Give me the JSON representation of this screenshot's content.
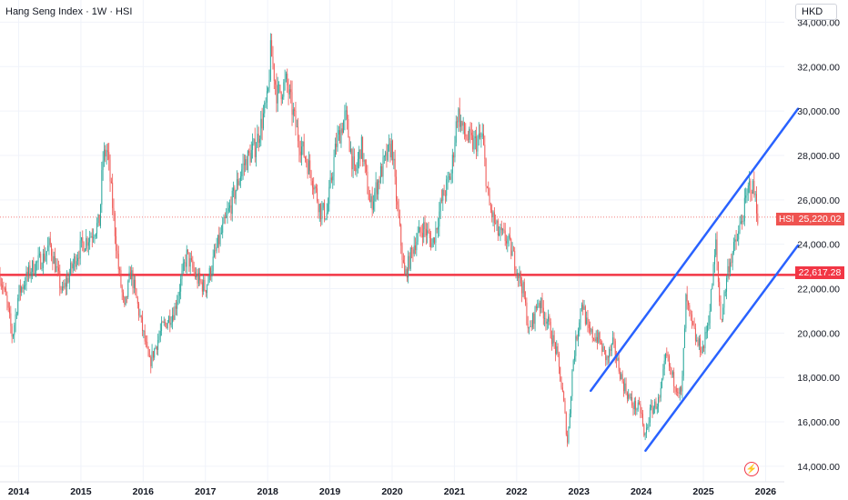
{
  "header": {
    "title": "Hang Seng Index · 1W · HSI"
  },
  "currency": "HKD",
  "price_tag": {
    "symbol": "HSI",
    "value": "25,220.02"
  },
  "level_tag": {
    "value": "22,617.28"
  },
  "icons": {
    "alert": "lightning-icon"
  },
  "colors": {
    "up": "#26a69a",
    "down": "#ef5350",
    "level": "#f23645",
    "channel": "#2962ff",
    "grid": "#f0f3fa",
    "text": "#131722"
  },
  "chart_data": {
    "type": "candlestick",
    "title": "Hang Seng Index · 1W · HSI",
    "currency": "HKD",
    "x_range": [
      2013.7,
      2026.3
    ],
    "y_range": [
      13300,
      35000
    ],
    "y_ticks": [
      14000,
      16000,
      18000,
      20000,
      22000,
      24000,
      26000,
      28000,
      30000,
      32000,
      34000
    ],
    "y_tick_labels": [
      "14,000.00",
      "16,000.00",
      "18,000.00",
      "20,000.00",
      "22,000.00",
      "24,000.00",
      "26,000.00",
      "28,000.00",
      "30,000.00",
      "32,000.00",
      "34,000.00"
    ],
    "x_ticks": [
      2014,
      2015,
      2016,
      2017,
      2018,
      2019,
      2020,
      2021,
      2022,
      2023,
      2024,
      2025,
      2026
    ],
    "x_tick_labels": [
      "2014",
      "2015",
      "2016",
      "2017",
      "2018",
      "2019",
      "2020",
      "2021",
      "2022",
      "2023",
      "2024",
      "2025",
      "2026"
    ],
    "last_price": 25220.02,
    "horizontal_level": 22617.28,
    "price_path": [
      [
        2013.7,
        22600
      ],
      [
        2013.8,
        21500
      ],
      [
        2013.9,
        19800
      ],
      [
        2014.0,
        21800
      ],
      [
        2014.2,
        22900
      ],
      [
        2014.4,
        23400
      ],
      [
        2014.5,
        24000
      ],
      [
        2014.7,
        21800
      ],
      [
        2014.9,
        23300
      ],
      [
        2015.0,
        23900
      ],
      [
        2015.15,
        24400
      ],
      [
        2015.3,
        25000
      ],
      [
        2015.35,
        27800
      ],
      [
        2015.42,
        28300
      ],
      [
        2015.5,
        26000
      ],
      [
        2015.6,
        23000
      ],
      [
        2015.7,
        21000
      ],
      [
        2015.8,
        22800
      ],
      [
        2016.0,
        20000
      ],
      [
        2016.1,
        18600
      ],
      [
        2016.3,
        20200
      ],
      [
        2016.5,
        21000
      ],
      [
        2016.7,
        23500
      ],
      [
        2016.85,
        22500
      ],
      [
        2017.0,
        22000
      ],
      [
        2017.2,
        24000
      ],
      [
        2017.4,
        25700
      ],
      [
        2017.6,
        27500
      ],
      [
        2017.8,
        28400
      ],
      [
        2018.0,
        30500
      ],
      [
        2018.05,
        32800
      ],
      [
        2018.15,
        30700
      ],
      [
        2018.3,
        31300
      ],
      [
        2018.5,
        28700
      ],
      [
        2018.7,
        27200
      ],
      [
        2018.85,
        25500
      ],
      [
        2018.95,
        25400
      ],
      [
        2019.1,
        28500
      ],
      [
        2019.25,
        29800
      ],
      [
        2019.4,
        27000
      ],
      [
        2019.5,
        28500
      ],
      [
        2019.65,
        25700
      ],
      [
        2019.85,
        27500
      ],
      [
        2020.0,
        28500
      ],
      [
        2020.05,
        26500
      ],
      [
        2020.2,
        22500
      ],
      [
        2020.35,
        24000
      ],
      [
        2020.5,
        24800
      ],
      [
        2020.65,
        24000
      ],
      [
        2020.8,
        26000
      ],
      [
        2020.95,
        27200
      ],
      [
        2021.05,
        30000
      ],
      [
        2021.15,
        29000
      ],
      [
        2021.3,
        28500
      ],
      [
        2021.45,
        28800
      ],
      [
        2021.55,
        25800
      ],
      [
        2021.7,
        24500
      ],
      [
        2021.85,
        24200
      ],
      [
        2021.95,
        23400
      ],
      [
        2022.1,
        22000
      ],
      [
        2022.2,
        20000
      ],
      [
        2022.35,
        21500
      ],
      [
        2022.5,
        20500
      ],
      [
        2022.65,
        19000
      ],
      [
        2022.75,
        17000
      ],
      [
        2022.82,
        15000
      ],
      [
        2022.9,
        18600
      ],
      [
        2023.05,
        21500
      ],
      [
        2023.15,
        20000
      ],
      [
        2023.3,
        19800
      ],
      [
        2023.45,
        18800
      ],
      [
        2023.55,
        19500
      ],
      [
        2023.7,
        17800
      ],
      [
        2023.85,
        16800
      ],
      [
        2024.0,
        16500
      ],
      [
        2024.05,
        15200
      ],
      [
        2024.15,
        16500
      ],
      [
        2024.3,
        17000
      ],
      [
        2024.4,
        19000
      ],
      [
        2024.5,
        18000
      ],
      [
        2024.65,
        17200
      ],
      [
        2024.72,
        21500
      ],
      [
        2024.8,
        20500
      ],
      [
        2024.9,
        19500
      ],
      [
        2025.0,
        19300
      ],
      [
        2025.1,
        21000
      ],
      [
        2025.2,
        24000
      ],
      [
        2025.28,
        20500
      ],
      [
        2025.4,
        23000
      ],
      [
        2025.55,
        24300
      ],
      [
        2025.65,
        25500
      ],
      [
        2025.75,
        26800
      ],
      [
        2025.82,
        26300
      ],
      [
        2025.88,
        25220
      ]
    ],
    "annotations": [
      {
        "type": "horizontal_line",
        "value": 22617.28
      },
      {
        "type": "trend_line",
        "from": [
          2023.19,
          17400
        ],
        "to": [
          2026.52,
          30100
        ]
      },
      {
        "type": "trend_line",
        "from": [
          2024.07,
          14700
        ],
        "to": [
          2026.52,
          23950
        ]
      }
    ]
  }
}
